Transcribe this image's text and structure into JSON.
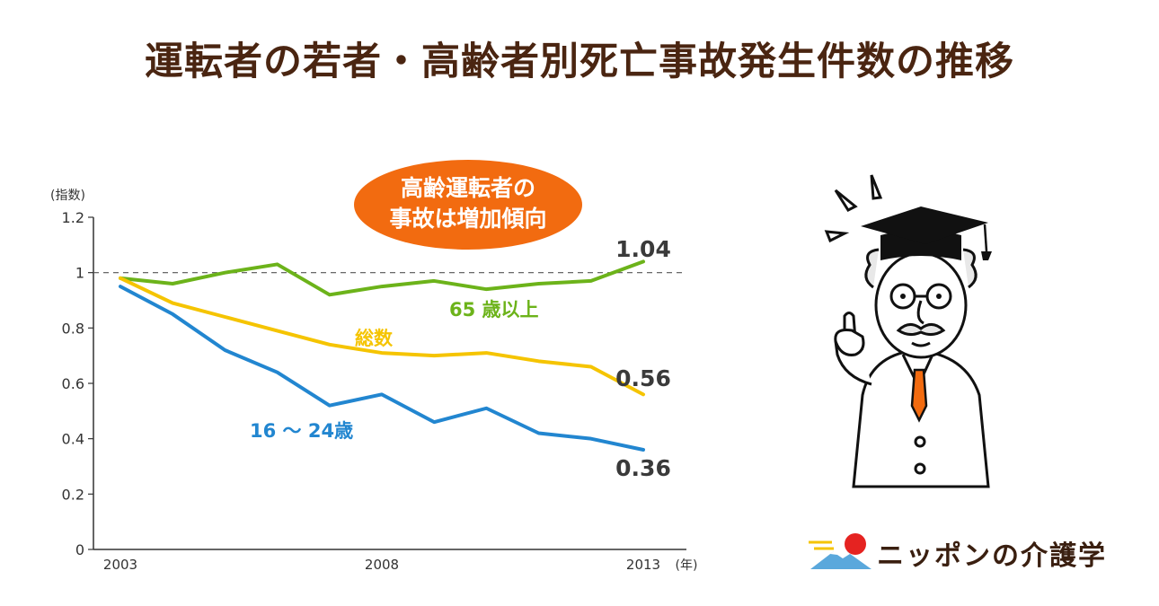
{
  "title": "運転者の若者・高齢者別死亡事故発生件数の推移",
  "callout": {
    "line1": "高齢運転者の",
    "line2": "事故は増加傾向",
    "color": "#f26b10"
  },
  "logo": {
    "text": "ニッポンの介護学"
  },
  "chart_data": {
    "type": "line",
    "ylabel": "(指数)",
    "xlabel": "(年)",
    "ylim": [
      0,
      1.2
    ],
    "yticks": [
      "0",
      "0.2",
      "0.4",
      "0.6",
      "0.8",
      "1",
      "1.2"
    ],
    "x_tick_labels": [
      "2003",
      "2008",
      "2013"
    ],
    "x": [
      2003,
      2004,
      2005,
      2006,
      2007,
      2008,
      2009,
      2010,
      2011,
      2012,
      2013
    ],
    "reference_line": 1,
    "grid": false,
    "series": [
      {
        "name": "65 歳以上",
        "color": "#6cb31a",
        "values": [
          0.98,
          0.96,
          1.0,
          1.03,
          0.92,
          0.95,
          0.97,
          0.94,
          0.96,
          0.97,
          1.04
        ],
        "end_label": "1.04"
      },
      {
        "name": "総数",
        "color": "#f5c400",
        "values": [
          0.98,
          0.89,
          0.84,
          0.79,
          0.74,
          0.71,
          0.7,
          0.71,
          0.68,
          0.66,
          0.56
        ],
        "end_label": "0.56"
      },
      {
        "name": "16 ～ 24歳",
        "color": "#2286d0",
        "values": [
          0.95,
          0.85,
          0.72,
          0.64,
          0.52,
          0.56,
          0.46,
          0.51,
          0.42,
          0.4,
          0.36
        ],
        "end_label": "0.36"
      }
    ]
  }
}
